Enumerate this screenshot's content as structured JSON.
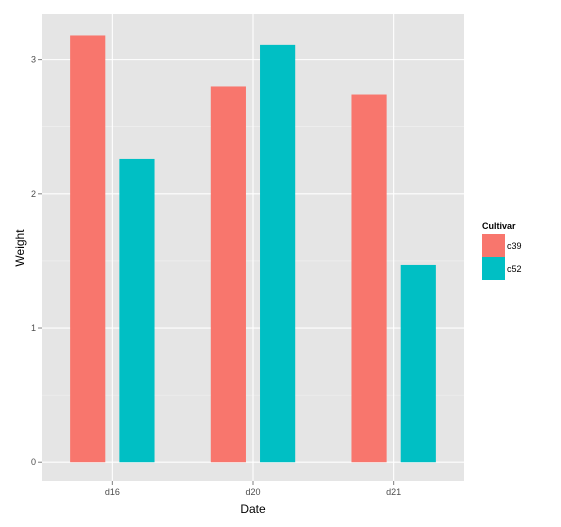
{
  "chart_data": {
    "type": "bar",
    "title": "",
    "xlabel": "Date",
    "ylabel": "Weight",
    "categories": [
      "d16",
      "d20",
      "d21"
    ],
    "series": [
      {
        "name": "c39",
        "values": [
          3.18,
          2.8,
          2.74
        ],
        "color": "#F8766D"
      },
      {
        "name": "c52",
        "values": [
          2.26,
          3.11,
          1.47
        ],
        "color": "#00BFC4"
      }
    ],
    "ylim": [
      -0.14,
      3.34
    ],
    "yticks": [
      0,
      1,
      2,
      3
    ],
    "grid": true,
    "legend": {
      "title": "Cultivar",
      "position": "right"
    },
    "colors": {
      "panel_background": "#E5E5E5",
      "grid_major": "#FFFFFF",
      "grid_minor": "#F2F2F2"
    }
  }
}
